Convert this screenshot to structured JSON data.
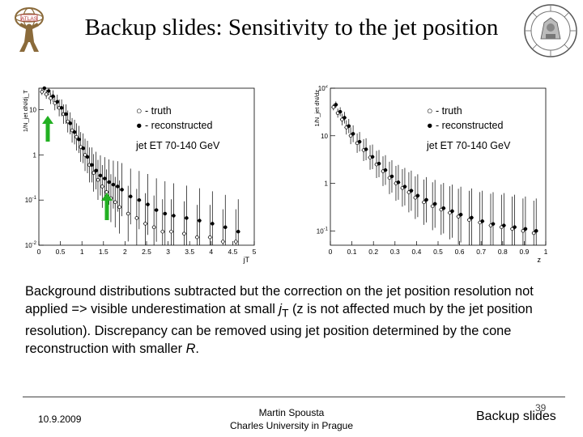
{
  "slide": {
    "title": "Backup slides: Sensitivity to the jet position",
    "body_parts": [
      "Background distributions subtracted but the correction on the jet position resolution not applied => visible underestimation at small ",
      "j",
      "T",
      " (z is not affected much by the jet position resolution). Discrepancy can be removed using jet position determined by the cone reconstruction with smaller ",
      "R",
      "."
    ]
  },
  "footer": {
    "date": "10.9.2009",
    "author": "Martin Spousta",
    "affiliation": "Charles University in Prague",
    "page": "39",
    "section": "Backup slides"
  },
  "colors": {
    "arrow": "#22b022",
    "markers": "#000000"
  },
  "chart_data": [
    {
      "type": "scatter",
      "title": "",
      "xlabel": "jT",
      "ylabel": "1/N_jet dN/dj_T",
      "scale": "log-y",
      "xlim": [
        0,
        5
      ],
      "ylim": [
        0.01,
        30
      ],
      "xticks": [
        "0",
        "0.5",
        "1",
        "1.5",
        "2",
        "2.5",
        "3",
        "3.5",
        "4",
        "4.5",
        "5"
      ],
      "yticks": [
        "10^-2",
        "10^-1",
        "1",
        "10"
      ],
      "legend": {
        "open": "○ - truth",
        "filled": "● - reconstructed",
        "cut": "jet ET 70-140 GeV"
      },
      "series": [
        {
          "name": "truth",
          "x": [
            0.1,
            0.2,
            0.3,
            0.4,
            0.5,
            0.6,
            0.7,
            0.8,
            0.9,
            1.0,
            1.1,
            1.2,
            1.3,
            1.4,
            1.5,
            1.6,
            1.7,
            1.8,
            1.9,
            2.1,
            2.3,
            2.5,
            2.7,
            2.9,
            3.1,
            3.4,
            3.7,
            4.0,
            4.3,
            4.6
          ],
          "y": [
            25,
            22,
            18,
            14,
            11,
            8,
            5.5,
            3.5,
            2.5,
            1.5,
            1.0,
            0.6,
            0.4,
            0.28,
            0.2,
            0.15,
            0.11,
            0.09,
            0.07,
            0.05,
            0.04,
            0.03,
            0.025,
            0.02,
            0.02,
            0.018,
            0.015,
            0.015,
            0.012,
            0.012
          ]
        },
        {
          "name": "reconstructed",
          "x": [
            0.1,
            0.2,
            0.3,
            0.4,
            0.5,
            0.6,
            0.7,
            0.8,
            0.9,
            1.0,
            1.1,
            1.2,
            1.3,
            1.4,
            1.5,
            1.6,
            1.7,
            1.8,
            1.9,
            2.1,
            2.3,
            2.5,
            2.7,
            2.9,
            3.1,
            3.4,
            3.7,
            4.0,
            4.3,
            4.6
          ],
          "y": [
            30,
            26,
            20,
            15,
            11,
            8,
            5,
            3.2,
            2.2,
            1.4,
            0.9,
            0.6,
            0.45,
            0.35,
            0.3,
            0.25,
            0.22,
            0.2,
            0.17,
            0.12,
            0.1,
            0.08,
            0.06,
            0.05,
            0.045,
            0.04,
            0.035,
            0.03,
            0.025,
            0.02
          ]
        }
      ]
    },
    {
      "type": "scatter",
      "title": "",
      "xlabel": "z",
      "ylabel": "1/N_jet dN/dz",
      "scale": "log-y",
      "xlim": [
        0,
        1
      ],
      "ylim": [
        0.05,
        100
      ],
      "xticks": [
        "0",
        "0.1",
        "0.2",
        "0.3",
        "0.4",
        "0.5",
        "0.6",
        "0.7",
        "0.8",
        "0.9",
        "1"
      ],
      "yticks": [
        "10^-1",
        "1",
        "10",
        "10^2"
      ],
      "legend": {
        "open": "○ - truth",
        "filled": "● - reconstructed",
        "cut": "jet ET 70-140 GeV"
      },
      "series": [
        {
          "name": "truth",
          "x": [
            0.02,
            0.04,
            0.06,
            0.08,
            0.1,
            0.13,
            0.16,
            0.19,
            0.22,
            0.25,
            0.28,
            0.31,
            0.34,
            0.37,
            0.4,
            0.44,
            0.48,
            0.52,
            0.56,
            0.6,
            0.65,
            0.7,
            0.75,
            0.8,
            0.85,
            0.9,
            0.95
          ],
          "y": [
            40,
            30,
            22,
            15,
            10,
            7,
            5,
            3.5,
            2.5,
            1.8,
            1.3,
            1.0,
            0.8,
            0.65,
            0.5,
            0.4,
            0.33,
            0.28,
            0.24,
            0.2,
            0.17,
            0.15,
            0.13,
            0.12,
            0.11,
            0.1,
            0.09
          ]
        },
        {
          "name": "reconstructed",
          "x": [
            0.02,
            0.04,
            0.06,
            0.08,
            0.1,
            0.13,
            0.16,
            0.19,
            0.22,
            0.25,
            0.28,
            0.31,
            0.34,
            0.37,
            0.4,
            0.44,
            0.48,
            0.52,
            0.56,
            0.6,
            0.65,
            0.7,
            0.75,
            0.8,
            0.85,
            0.9,
            0.95
          ],
          "y": [
            45,
            32,
            24,
            16,
            11,
            7.5,
            5.2,
            3.6,
            2.6,
            1.9,
            1.4,
            1.05,
            0.85,
            0.7,
            0.55,
            0.45,
            0.37,
            0.3,
            0.26,
            0.22,
            0.19,
            0.16,
            0.14,
            0.13,
            0.12,
            0.11,
            0.1
          ]
        }
      ]
    }
  ]
}
